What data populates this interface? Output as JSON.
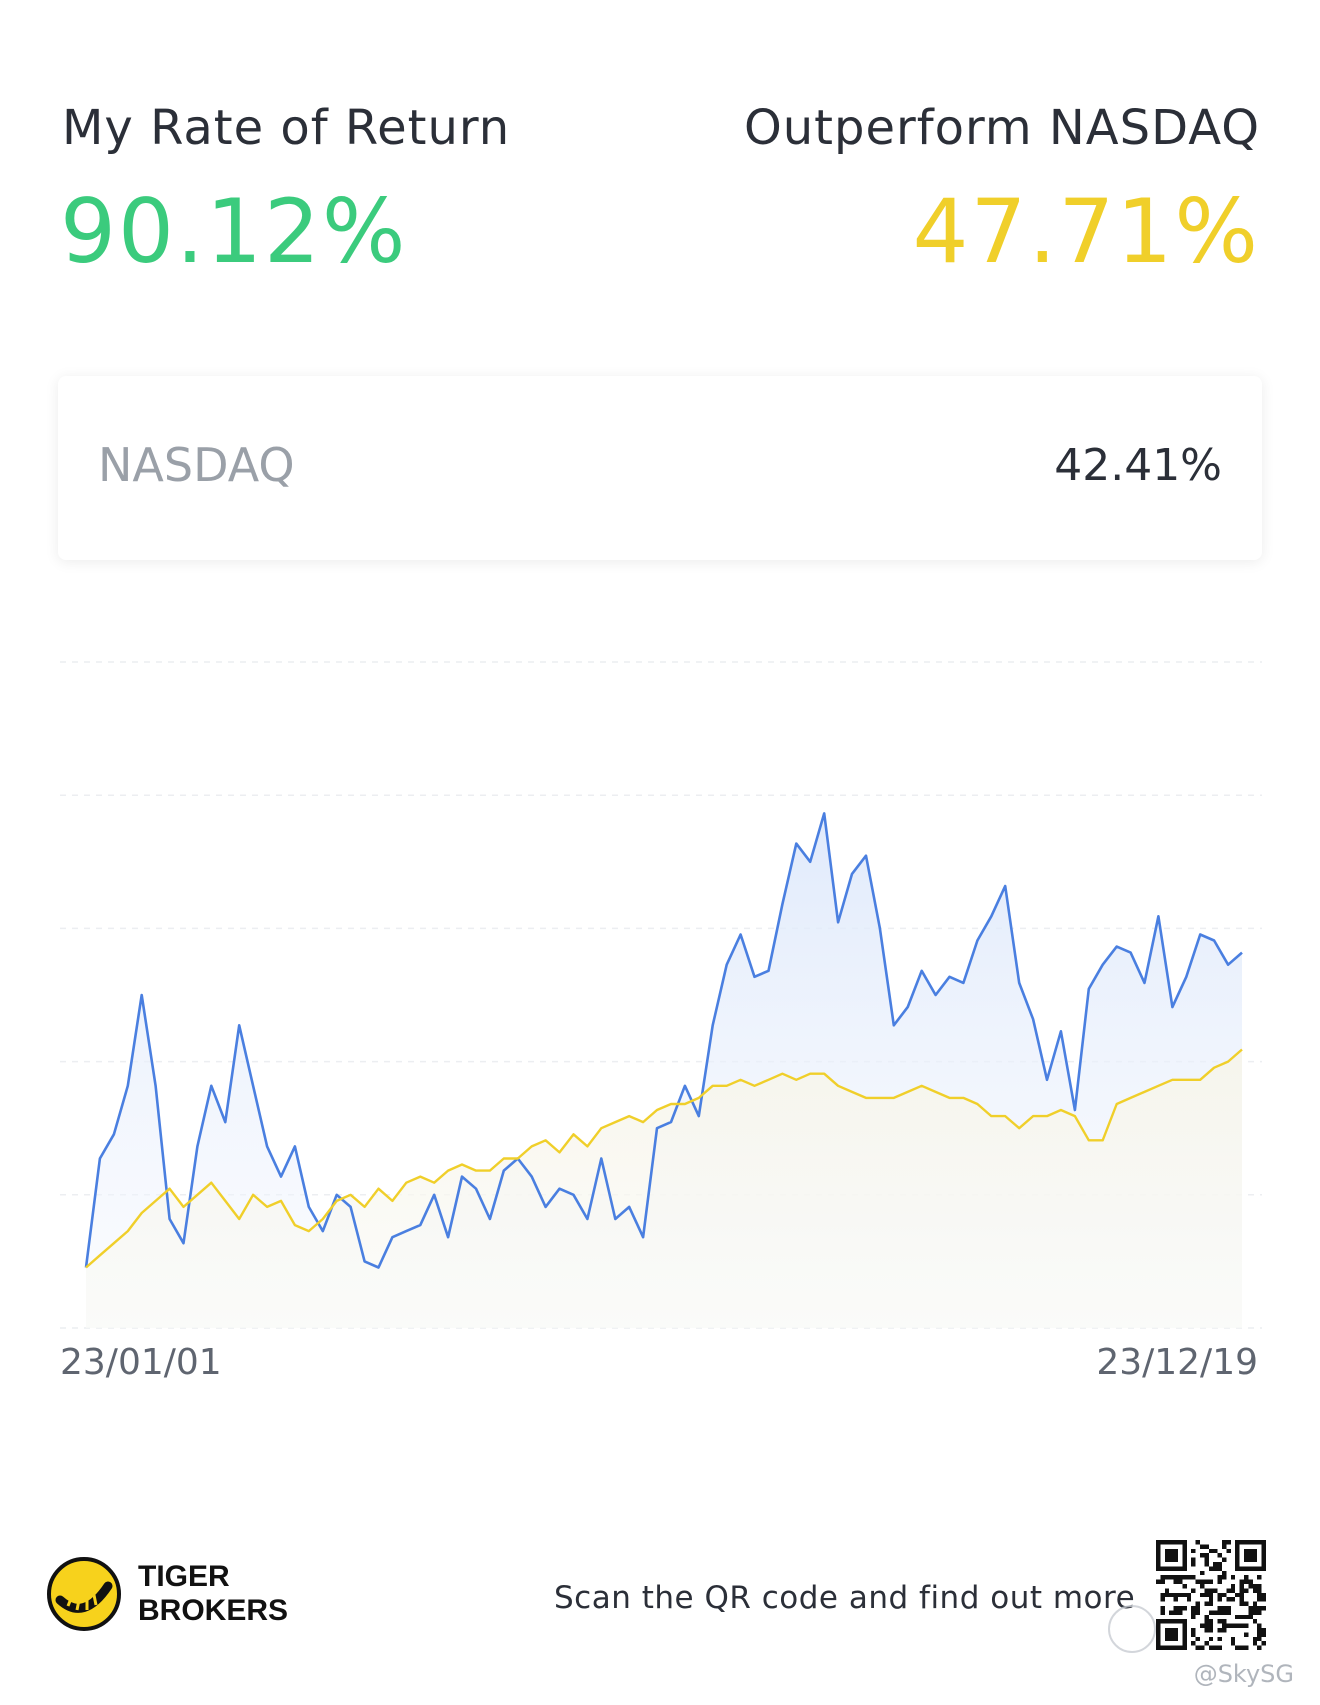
{
  "header": {
    "my_return_label": "My Rate of Return",
    "my_return_value": "90.12%",
    "outperform_label": "Outperform NASDAQ",
    "outperform_value": "47.71%"
  },
  "benchmark": {
    "name": "NASDAQ",
    "value": "42.41%"
  },
  "colors": {
    "green": "#3bcb7d",
    "yellow": "#f0cf2a",
    "blue": "#4a7fe0"
  },
  "chart_data": {
    "type": "line",
    "x_start_label": "23/01/01",
    "x_end_label": "23/12/19",
    "grid": true,
    "ylim": [
      -10,
      100
    ],
    "series": [
      {
        "name": "My Rate of Return",
        "color": "#4a7fe0",
        "area_fill": true,
        "values": [
          0,
          18,
          22,
          30,
          45,
          30,
          8,
          4,
          20,
          30,
          24,
          40,
          30,
          20,
          15,
          20,
          10,
          6,
          12,
          10,
          1,
          0,
          5,
          6,
          7,
          12,
          5,
          15,
          13,
          8,
          16,
          18,
          15,
          10,
          13,
          12,
          8,
          18,
          8,
          10,
          5,
          23,
          24,
          30,
          25,
          40,
          50,
          55,
          48,
          49,
          60,
          70,
          67,
          75,
          57,
          65,
          68,
          56,
          40,
          43,
          49,
          45,
          48,
          47,
          54,
          58,
          63,
          47,
          41,
          31,
          39,
          26,
          46,
          50,
          53,
          52,
          47,
          58,
          43,
          48,
          55,
          54,
          50,
          52
        ]
      },
      {
        "name": "NASDAQ",
        "color": "#f0cf2a",
        "area_fill": true,
        "values": [
          0,
          2,
          4,
          6,
          9,
          11,
          13,
          10,
          12,
          14,
          11,
          8,
          12,
          10,
          11,
          7,
          6,
          8,
          11,
          12,
          10,
          13,
          11,
          14,
          15,
          14,
          16,
          17,
          16,
          16,
          18,
          18,
          20,
          21,
          19,
          22,
          20,
          23,
          24,
          25,
          24,
          26,
          27,
          27,
          28,
          30,
          30,
          31,
          30,
          31,
          32,
          31,
          32,
          32,
          30,
          29,
          28,
          28,
          28,
          29,
          30,
          29,
          28,
          28,
          27,
          25,
          25,
          23,
          25,
          25,
          26,
          25,
          21,
          21,
          27,
          28,
          29,
          30,
          31,
          31,
          31,
          33,
          34,
          36
        ]
      }
    ]
  },
  "footer": {
    "brand_line1": "TIGER",
    "brand_line2": "BROKERS",
    "scan_text": "Scan the QR code and find out more",
    "watermark": "@SkySG"
  }
}
